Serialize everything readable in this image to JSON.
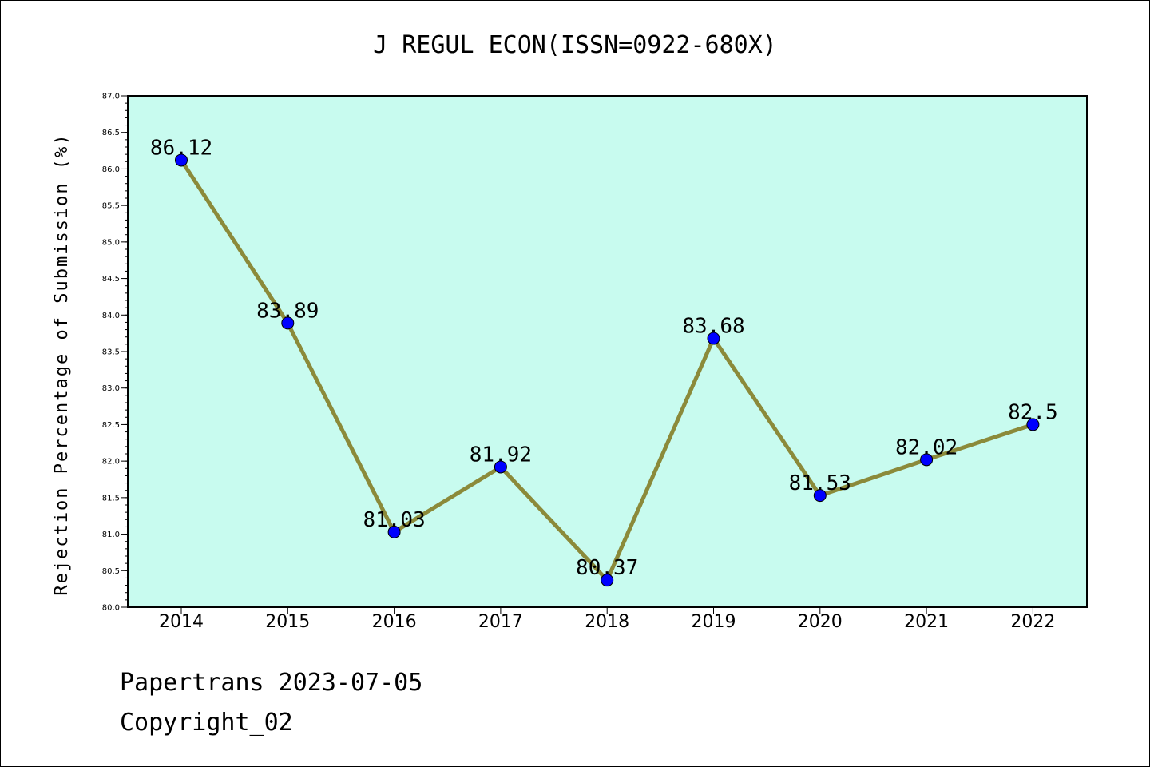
{
  "footer": {
    "line1": "Papertrans 2023-07-05",
    "line2": "Copyright_02"
  },
  "chart_data": {
    "type": "line",
    "title": "J REGUL ECON(ISSN=0922-680X)",
    "xlabel": "",
    "ylabel": "Rejection Percentage of Submission (%)",
    "categories": [
      "2014",
      "2015",
      "2016",
      "2017",
      "2018",
      "2019",
      "2020",
      "2021",
      "2022"
    ],
    "values": [
      86.12,
      83.89,
      81.03,
      81.92,
      80.37,
      83.68,
      81.53,
      82.02,
      82.5
    ],
    "data_labels": [
      "86.12",
      "83.89",
      "81.03",
      "81.92",
      "80.37",
      "83.68",
      "81.53",
      "82.02",
      "82.5"
    ],
    "ylim": [
      80.0,
      87.0
    ],
    "yticks": [
      "80.0",
      "80.5",
      "81.0",
      "81.5",
      "82.0",
      "82.5",
      "83.0",
      "83.5",
      "84.0",
      "84.5",
      "85.0",
      "85.5",
      "86.0",
      "86.5",
      "87.0"
    ],
    "grid": false,
    "legend": "none",
    "colors": {
      "plot_background": "#c8fbef",
      "line": "#8b8a3a",
      "marker": "#0000ff"
    }
  }
}
